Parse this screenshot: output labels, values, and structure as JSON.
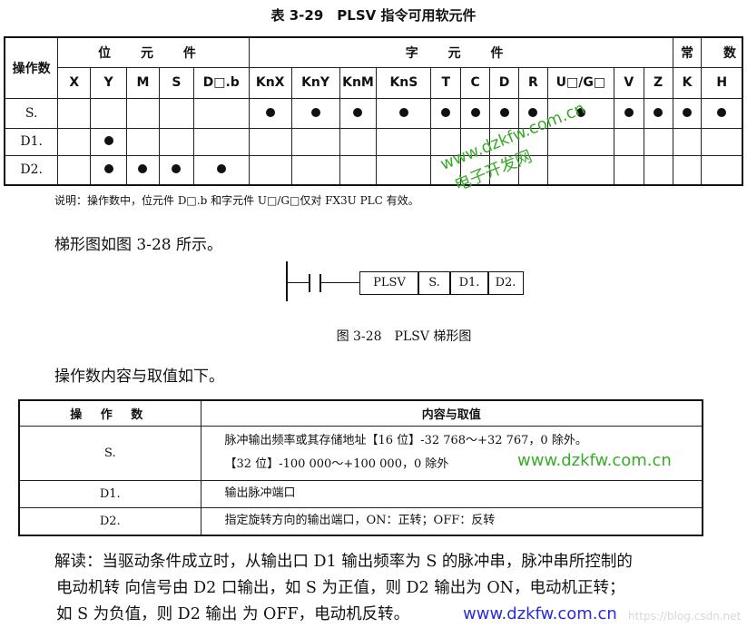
{
  "table1": {
    "title": "表 3-29　PLSV 指令可用软元件",
    "operand_header": "操作数",
    "groups": [
      "位 元 件",
      "字 元 件",
      "常",
      "数"
    ],
    "columns": [
      "X",
      "Y",
      "M",
      "S",
      "D□.b",
      "KnX",
      "KnY",
      "KnM",
      "KnS",
      "T",
      "C",
      "D",
      "R",
      "U□/G□",
      "V",
      "Z",
      "K",
      "H"
    ],
    "rows": [
      {
        "label": "S.",
        "marks": [
          0,
          0,
          0,
          0,
          0,
          1,
          1,
          1,
          1,
          1,
          1,
          1,
          1,
          1,
          1,
          1,
          1,
          1
        ]
      },
      {
        "label": "D1.",
        "marks": [
          0,
          1,
          0,
          0,
          0,
          0,
          0,
          0,
          0,
          0,
          0,
          0,
          0,
          0,
          0,
          0,
          0,
          0
        ]
      },
      {
        "label": "D2.",
        "marks": [
          0,
          1,
          1,
          1,
          1,
          0,
          0,
          0,
          0,
          0,
          0,
          0,
          0,
          0,
          0,
          0,
          0,
          0
        ]
      }
    ],
    "note": "说明：操作数中，位元件 D□.b 和字元件 U□/G□仅对 FX3U PLC 有效。"
  },
  "ladder_intro": "梯形图如图 3-28 所示。",
  "ladder": {
    "cells": [
      "PLSV",
      "S.",
      "D1.",
      "D2."
    ],
    "caption": "图 3-28　PLSV 梯形图"
  },
  "operand_intro": "操作数内容与取值如下。",
  "table2": {
    "headers": [
      "操 作 数",
      "内容与取值"
    ],
    "rows": [
      {
        "op": "S.",
        "lines": [
          "脉冲输出频率或其存储地址【16 位】-32 768～+32 767，0 除外。",
          "【32 位】-100 000～+100 000，0 除外"
        ]
      },
      {
        "op": "D1.",
        "lines": [
          "输出脉冲端口"
        ]
      },
      {
        "op": "D2.",
        "lines": [
          "指定旋转方向的输出端口，ON：正转；OFF：反转"
        ]
      }
    ]
  },
  "explanation": [
    "解读：当驱动条件成立时，从输出口 D1 输出频率为 S 的脉冲串，脉冲串所控制的",
    "电动机转 向信号由 D2 口输出，如 S 为正值，则 D2 输出为 ON，电动机正转；",
    "如 S 为负值，则 D2 输出 为 OFF，电动机反转。"
  ],
  "watermarks": {
    "green_url": "www.dzkfw.com.cn",
    "green_cn": "电子开发网",
    "green_url2": "www.dzkfw.com.cn",
    "blue_url": "www.dzkfw.com.cn",
    "csdn": "https://blog.csdn.net"
  }
}
